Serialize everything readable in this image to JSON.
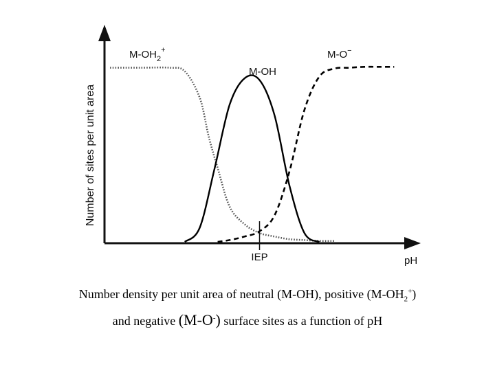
{
  "chart_data": {
    "type": "line",
    "title": "",
    "xlabel": "pH",
    "ylabel": "Number of sites per unit area",
    "xlim": [
      0,
      10
    ],
    "ylim": [
      0,
      1
    ],
    "x_marker": {
      "label": "IEP",
      "x": 5
    },
    "series": [
      {
        "name_base": "M-OH",
        "name_sub": "2",
        "name_sup": "+",
        "style": "dotted",
        "x": [
          0,
          1,
          2,
          2.5,
          3,
          3.3,
          3.6,
          4,
          4.5,
          5,
          5.5,
          6,
          6.5,
          7,
          7.5
        ],
        "y": [
          0.99,
          0.99,
          0.99,
          0.97,
          0.82,
          0.6,
          0.42,
          0.2,
          0.1,
          0.05,
          0.03,
          0.015,
          0.01,
          0.005,
          0.005
        ]
      },
      {
        "name": "M-OH",
        "style": "solid",
        "x": [
          2.5,
          3,
          3.5,
          4,
          4.5,
          5,
          5.5,
          6,
          6.5,
          7
        ],
        "y": [
          0,
          0.08,
          0.42,
          0.78,
          0.93,
          0.92,
          0.72,
          0.32,
          0.05,
          0
        ]
      },
      {
        "name_base": "M-O",
        "name_sup": "−",
        "style": "dashed",
        "x": [
          3.6,
          4,
          4.5,
          5,
          5.5,
          6,
          6.5,
          7,
          7.5,
          8,
          8.5,
          9,
          9.5
        ],
        "y": [
          0,
          0.01,
          0.03,
          0.06,
          0.15,
          0.4,
          0.75,
          0.94,
          0.985,
          0.99,
          0.995,
          0.995,
          0.995
        ]
      }
    ]
  },
  "caption": {
    "line1_start": "Number density per unit area of neutral (M-OH), positive (M-OH",
    "line1_sub": "2",
    "line1_sup": "+",
    "line1_end": ")",
    "line2_start": "and negative ",
    "line2_big_start": "(M-O",
    "line2_sup": "-",
    "line2_big_end": ")",
    "line2_end": " surface sites as a function of pH"
  }
}
